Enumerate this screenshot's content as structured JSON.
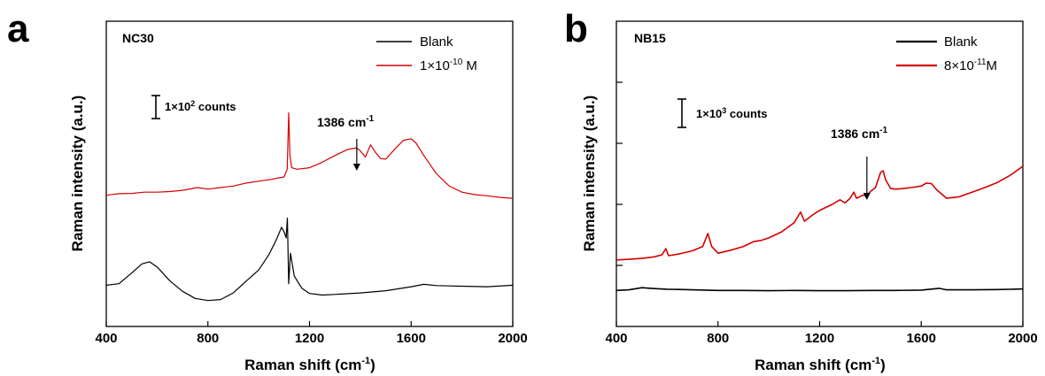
{
  "chart_data": [
    {
      "type": "line",
      "panel_label": "a",
      "sample": "NC30",
      "xlabel": "Raman shift (cm",
      "xlabel_sup": "-1",
      "xlabel_end": ")",
      "ylabel": "Raman intensity (a.u.)",
      "xlim": [
        400,
        2000
      ],
      "xticks": [
        "400",
        "800",
        "1200",
        "1600",
        "2000"
      ],
      "xtick_values": [
        400,
        800,
        1200,
        1600,
        2000
      ],
      "yticks_shown": false,
      "ylim": [
        0,
        1000
      ],
      "scale_bar": {
        "prefix": "1",
        "mid": "×10",
        "sup": "2",
        "suffix": " counts"
      },
      "annotation": {
        "text": "1386 cm",
        "sup": "-1",
        "x": 1386
      },
      "series": [
        {
          "name": "Blank",
          "color": "#000000",
          "points": [
            [
              400,
              135
            ],
            [
              450,
              140
            ],
            [
              500,
              175
            ],
            [
              540,
              205
            ],
            [
              570,
              212
            ],
            [
              600,
              195
            ],
            [
              650,
              150
            ],
            [
              700,
              115
            ],
            [
              750,
              92
            ],
            [
              800,
              85
            ],
            [
              850,
              88
            ],
            [
              900,
              110
            ],
            [
              950,
              148
            ],
            [
              1000,
              185
            ],
            [
              1040,
              235
            ],
            [
              1070,
              285
            ],
            [
              1090,
              325
            ],
            [
              1100,
              310
            ],
            [
              1108,
              290
            ],
            [
              1113,
              355
            ],
            [
              1118,
              140
            ],
            [
              1125,
              240
            ],
            [
              1140,
              165
            ],
            [
              1170,
              125
            ],
            [
              1200,
              108
            ],
            [
              1250,
              103
            ],
            [
              1300,
              105
            ],
            [
              1400,
              110
            ],
            [
              1500,
              117
            ],
            [
              1600,
              130
            ],
            [
              1650,
              138
            ],
            [
              1700,
              134
            ],
            [
              1800,
              132
            ],
            [
              1900,
              130
            ],
            [
              2000,
              135
            ]
          ]
        },
        {
          "name": "1×10-10 M",
          "legend_text": {
            "base": "1×10",
            "sup": "-10",
            "suffix": " M"
          },
          "color": "#d40000",
          "points": [
            [
              400,
              430
            ],
            [
              450,
              435
            ],
            [
              500,
              436
            ],
            [
              550,
              440
            ],
            [
              600,
              440
            ],
            [
              650,
              442
            ],
            [
              700,
              446
            ],
            [
              760,
              455
            ],
            [
              800,
              450
            ],
            [
              850,
              455
            ],
            [
              900,
              460
            ],
            [
              950,
              470
            ],
            [
              1000,
              476
            ],
            [
              1050,
              482
            ],
            [
              1080,
              487
            ],
            [
              1100,
              490
            ],
            [
              1112,
              515
            ],
            [
              1118,
              700
            ],
            [
              1123,
              560
            ],
            [
              1130,
              520
            ],
            [
              1150,
              515
            ],
            [
              1200,
              520
            ],
            [
              1250,
              538
            ],
            [
              1300,
              560
            ],
            [
              1350,
              580
            ],
            [
              1386,
              585
            ],
            [
              1400,
              575
            ],
            [
              1420,
              555
            ],
            [
              1440,
              595
            ],
            [
              1460,
              570
            ],
            [
              1480,
              550
            ],
            [
              1500,
              548
            ],
            [
              1540,
              585
            ],
            [
              1570,
              610
            ],
            [
              1600,
              615
            ],
            [
              1620,
              600
            ],
            [
              1650,
              560
            ],
            [
              1700,
              500
            ],
            [
              1750,
              460
            ],
            [
              1800,
              440
            ],
            [
              1850,
              432
            ],
            [
              1900,
              428
            ],
            [
              1950,
              423
            ],
            [
              2000,
              420
            ]
          ]
        }
      ]
    },
    {
      "type": "line",
      "panel_label": "b",
      "sample": "NB15",
      "xlabel": "Raman shift (cm",
      "xlabel_sup": "-1",
      "xlabel_end": ")",
      "ylabel": "Raman intensity (a.u.)",
      "xlim": [
        400,
        2000
      ],
      "xticks": [
        "400",
        "800",
        "1200",
        "1600",
        "2000"
      ],
      "xtick_values": [
        400,
        800,
        1200,
        1600,
        2000
      ],
      "yticks_shown": true,
      "ylim": [
        0,
        1000
      ],
      "ytick_values": [
        200,
        400,
        600,
        800
      ],
      "scale_bar": {
        "prefix": "1",
        "mid": "×10",
        "sup": "3",
        "suffix": " counts"
      },
      "annotation": {
        "text": "1386 cm",
        "sup": "-1",
        "x": 1386
      },
      "series": [
        {
          "name": "Blank",
          "color": "#000000",
          "points": [
            [
              400,
              118
            ],
            [
              450,
              120
            ],
            [
              500,
              127
            ],
            [
              550,
              124
            ],
            [
              600,
              122
            ],
            [
              700,
              120
            ],
            [
              800,
              118
            ],
            [
              900,
              118
            ],
            [
              1000,
              117
            ],
            [
              1100,
              118
            ],
            [
              1200,
              117
            ],
            [
              1300,
              117
            ],
            [
              1400,
              118
            ],
            [
              1500,
              118
            ],
            [
              1600,
              119
            ],
            [
              1670,
              125
            ],
            [
              1700,
              120
            ],
            [
              1800,
              120
            ],
            [
              1900,
              121
            ],
            [
              2000,
              123
            ]
          ]
        },
        {
          "name": "8×10-11 M",
          "legend_text": {
            "base": "8×10",
            "sup": "-11",
            "suffix": "M"
          },
          "color": "#d40000",
          "points": [
            [
              400,
              218
            ],
            [
              450,
              220
            ],
            [
              500,
              223
            ],
            [
              550,
              228
            ],
            [
              580,
              235
            ],
            [
              595,
              255
            ],
            [
              605,
              232
            ],
            [
              650,
              238
            ],
            [
              700,
              248
            ],
            [
              740,
              262
            ],
            [
              760,
              305
            ],
            [
              775,
              262
            ],
            [
              800,
              240
            ],
            [
              850,
              250
            ],
            [
              900,
              262
            ],
            [
              940,
              278
            ],
            [
              970,
              282
            ],
            [
              1000,
              290
            ],
            [
              1050,
              310
            ],
            [
              1100,
              340
            ],
            [
              1125,
              375
            ],
            [
              1140,
              345
            ],
            [
              1180,
              370
            ],
            [
              1200,
              380
            ],
            [
              1250,
              400
            ],
            [
              1280,
              415
            ],
            [
              1300,
              405
            ],
            [
              1320,
              420
            ],
            [
              1335,
              440
            ],
            [
              1345,
              420
            ],
            [
              1370,
              430
            ],
            [
              1386,
              428
            ],
            [
              1400,
              442
            ],
            [
              1420,
              455
            ],
            [
              1440,
              505
            ],
            [
              1450,
              510
            ],
            [
              1460,
              480
            ],
            [
              1480,
              452
            ],
            [
              1500,
              450
            ],
            [
              1530,
              452
            ],
            [
              1560,
              455
            ],
            [
              1600,
              460
            ],
            [
              1620,
              470
            ],
            [
              1640,
              468
            ],
            [
              1660,
              448
            ],
            [
              1700,
              420
            ],
            [
              1750,
              425
            ],
            [
              1800,
              440
            ],
            [
              1850,
              455
            ],
            [
              1900,
              472
            ],
            [
              1950,
              495
            ],
            [
              2000,
              525
            ]
          ]
        }
      ]
    }
  ]
}
